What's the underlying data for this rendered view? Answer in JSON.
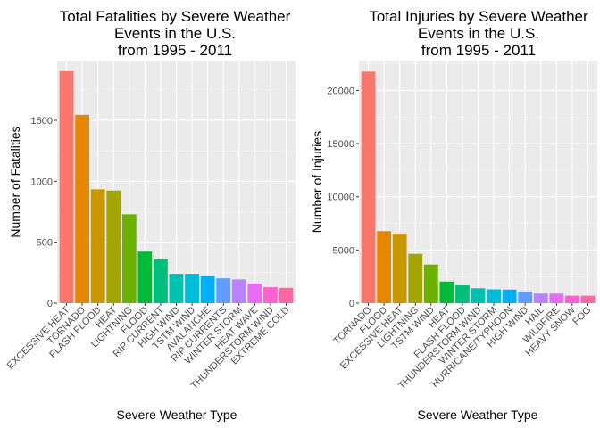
{
  "chart_data": [
    {
      "type": "bar",
      "title": [
        "Total Fatalities by Severe Weather",
        "Events in the U.S.",
        "from 1995 - 2011"
      ],
      "xlabel": "Severe Weather Type",
      "ylabel": "Number of Fatalities",
      "ylim": [
        0,
        1990
      ],
      "yticks": [
        0,
        500,
        1000,
        1500
      ],
      "grid": true,
      "legend": "none",
      "categories": [
        "EXCESSIVE HEAT",
        "TORNADO",
        "FLASH FLOOD",
        "HEAT",
        "LIGHTNING",
        "FLOOD",
        "RIP CURRENT",
        "HIGH WIND",
        "TSTM WIND",
        "AVALANCHE",
        "RIP CURRENTS",
        "WINTER STORM",
        "HEAT WAVE",
        "THUNDERSTORM WIND",
        "EXTREME COLD"
      ],
      "values": [
        1903,
        1545,
        934,
        924,
        729,
        423,
        360,
        241,
        241,
        224,
        204,
        195,
        161,
        131,
        126
      ],
      "colors": [
        "#F8766D",
        "#E58700",
        "#C99800",
        "#A3A500",
        "#6BB100",
        "#00BA38",
        "#00BF7D",
        "#00C0AF",
        "#00BCD8",
        "#00B0F6",
        "#619CFF",
        "#B983FF",
        "#E76BF3",
        "#FD61D1",
        "#FF67A4"
      ]
    },
    {
      "type": "bar",
      "title": [
        "Total Injuries by Severe Weather",
        "Events in the U.S.",
        "from 1995 - 2011"
      ],
      "xlabel": "Severe Weather Type",
      "ylabel": "Number of Injuries",
      "ylim": [
        0,
        22800
      ],
      "yticks": [
        0,
        5000,
        10000,
        15000,
        20000
      ],
      "grid": true,
      "legend": "none",
      "categories": [
        "TORNADO",
        "FLOOD",
        "EXCESSIVE HEAT",
        "LIGHTNING",
        "TSTM WIND",
        "HEAT",
        "FLASH FLOOD",
        "THUNDERSTORM WIND",
        "WINTER STORM",
        "HURRICANE/TYPHOON",
        "HIGH WIND",
        "HAIL",
        "WILDFIRE",
        "HEAVY SNOW",
        "FOG"
      ],
      "values": [
        21765,
        6769,
        6525,
        4631,
        3630,
        2030,
        1674,
        1400,
        1300,
        1275,
        1100,
        900,
        900,
        700,
        700
      ],
      "colors": [
        "#F8766D",
        "#E58700",
        "#C99800",
        "#A3A500",
        "#6BB100",
        "#00BA38",
        "#00BF7D",
        "#00C0AF",
        "#00BCD8",
        "#00B0F6",
        "#619CFF",
        "#B983FF",
        "#E76BF3",
        "#FD61D1",
        "#FF67A4"
      ]
    }
  ]
}
